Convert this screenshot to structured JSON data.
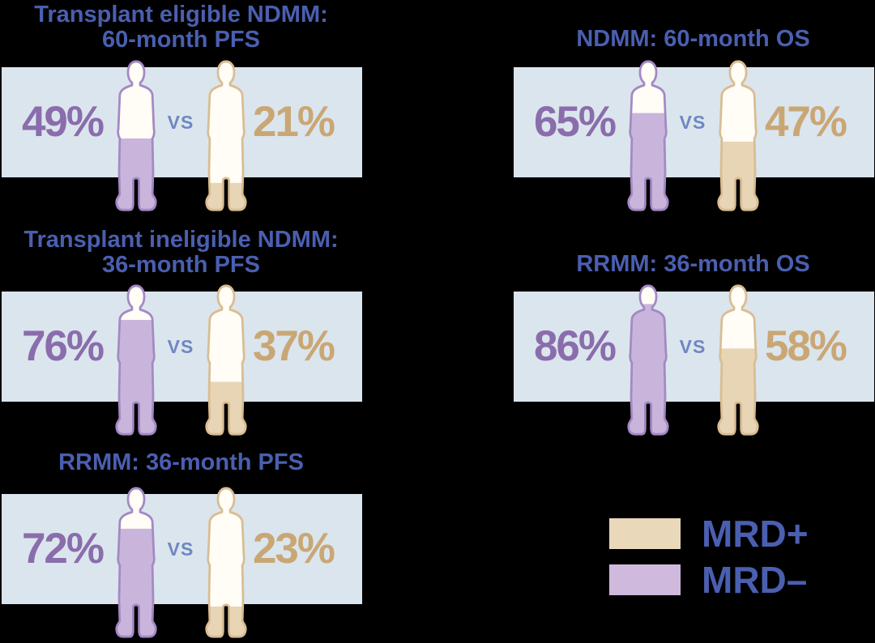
{
  "colors": {
    "background": "#000000",
    "band_bg": "#dbe5ed",
    "title_blue": "#4a5fb0",
    "vs_blue": "#6f87c2",
    "figure_empty": "#fffdf6",
    "mrd_negative": {
      "text": "#8a6dac",
      "outline": "#a489c4",
      "fill": "#c9b5dc"
    },
    "mrd_positive": {
      "text": "#c9a775",
      "outline": "#d9bd92",
      "fill": "#e8d5b5"
    }
  },
  "chart_data": {
    "type": "pictogram-comparison",
    "unit": "%",
    "vs_label": "vs",
    "series_names": [
      "MRD−",
      "MRD+"
    ],
    "panels": [
      {
        "title_lines": [
          "Transplant eligible NDMM:",
          "60-month PFS"
        ],
        "mrd_negative_pct": 49,
        "mrd_positive_pct": 21
      },
      {
        "title_lines": [
          "NDMM: 60-month OS"
        ],
        "mrd_negative_pct": 65,
        "mrd_positive_pct": 47
      },
      {
        "title_lines": [
          "Transplant ineligible NDMM:",
          "36-month PFS"
        ],
        "mrd_negative_pct": 76,
        "mrd_positive_pct": 37
      },
      {
        "title_lines": [
          "RRMM: 36-month OS"
        ],
        "mrd_negative_pct": 86,
        "mrd_positive_pct": 58
      },
      {
        "title_lines": [
          "RRMM: 36-month PFS"
        ],
        "mrd_negative_pct": 72,
        "mrd_positive_pct": 23
      }
    ],
    "legend": [
      {
        "id": "mrd_positive",
        "label": "MRD+",
        "swatch_color": "#ead8ba"
      },
      {
        "id": "mrd_negative",
        "label": "MRD–",
        "swatch_color": "#cfbade"
      }
    ]
  }
}
